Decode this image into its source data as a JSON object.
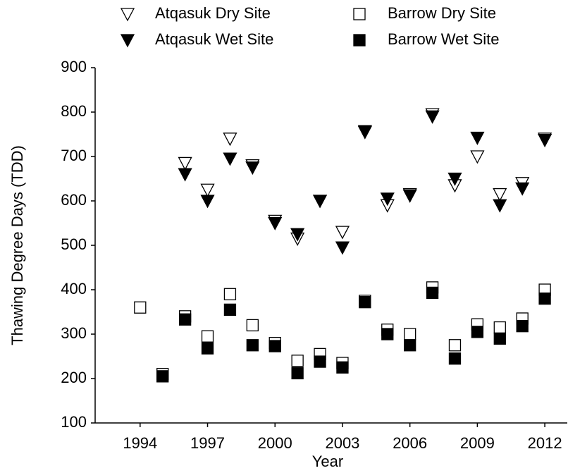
{
  "chart_data": {
    "type": "scatter",
    "xlabel": "Year",
    "ylabel": "Thawing Degree Days (TDD)",
    "x": [
      1994,
      1995,
      1996,
      1997,
      1998,
      1999,
      2000,
      2001,
      2002,
      2003,
      2004,
      2005,
      2006,
      2007,
      2008,
      2009,
      2010,
      2011,
      2012
    ],
    "series": [
      {
        "name": "Atqasuk Dry Site",
        "color": "#000000",
        "marker": "triangle-down",
        "filled": false,
        "values": [
          null,
          null,
          685,
          625,
          740,
          680,
          555,
          515,
          600,
          530,
          755,
          590,
          615,
          795,
          635,
          700,
          615,
          640,
          740
        ]
      },
      {
        "name": "Atqasuk Wet Site",
        "color": "#000000",
        "marker": "triangle-down",
        "filled": true,
        "values": [
          null,
          null,
          660,
          600,
          695,
          675,
          550,
          525,
          600,
          495,
          757,
          605,
          612,
          790,
          650,
          742,
          590,
          628,
          737
        ]
      },
      {
        "name": "Barrow Dry Site",
        "color": "#000000",
        "marker": "square",
        "filled": false,
        "values": [
          360,
          210,
          340,
          295,
          390,
          320,
          280,
          240,
          255,
          235,
          375,
          310,
          300,
          405,
          275,
          322,
          315,
          335,
          400
        ]
      },
      {
        "name": "Barrow Wet Site",
        "color": "#000000",
        "marker": "square",
        "filled": true,
        "values": [
          null,
          205,
          333,
          268,
          355,
          275,
          273,
          212,
          238,
          225,
          372,
          300,
          275,
          393,
          245,
          305,
          290,
          318,
          380
        ]
      }
    ],
    "xlim": [
      1992,
      2013
    ],
    "xticks": [
      1994,
      1997,
      2000,
      2003,
      2006,
      2009,
      2012
    ],
    "ylim": [
      100,
      900
    ],
    "yticks": [
      100,
      200,
      300,
      400,
      500,
      600,
      700,
      800,
      900
    ],
    "grid": false,
    "legend": "top"
  }
}
